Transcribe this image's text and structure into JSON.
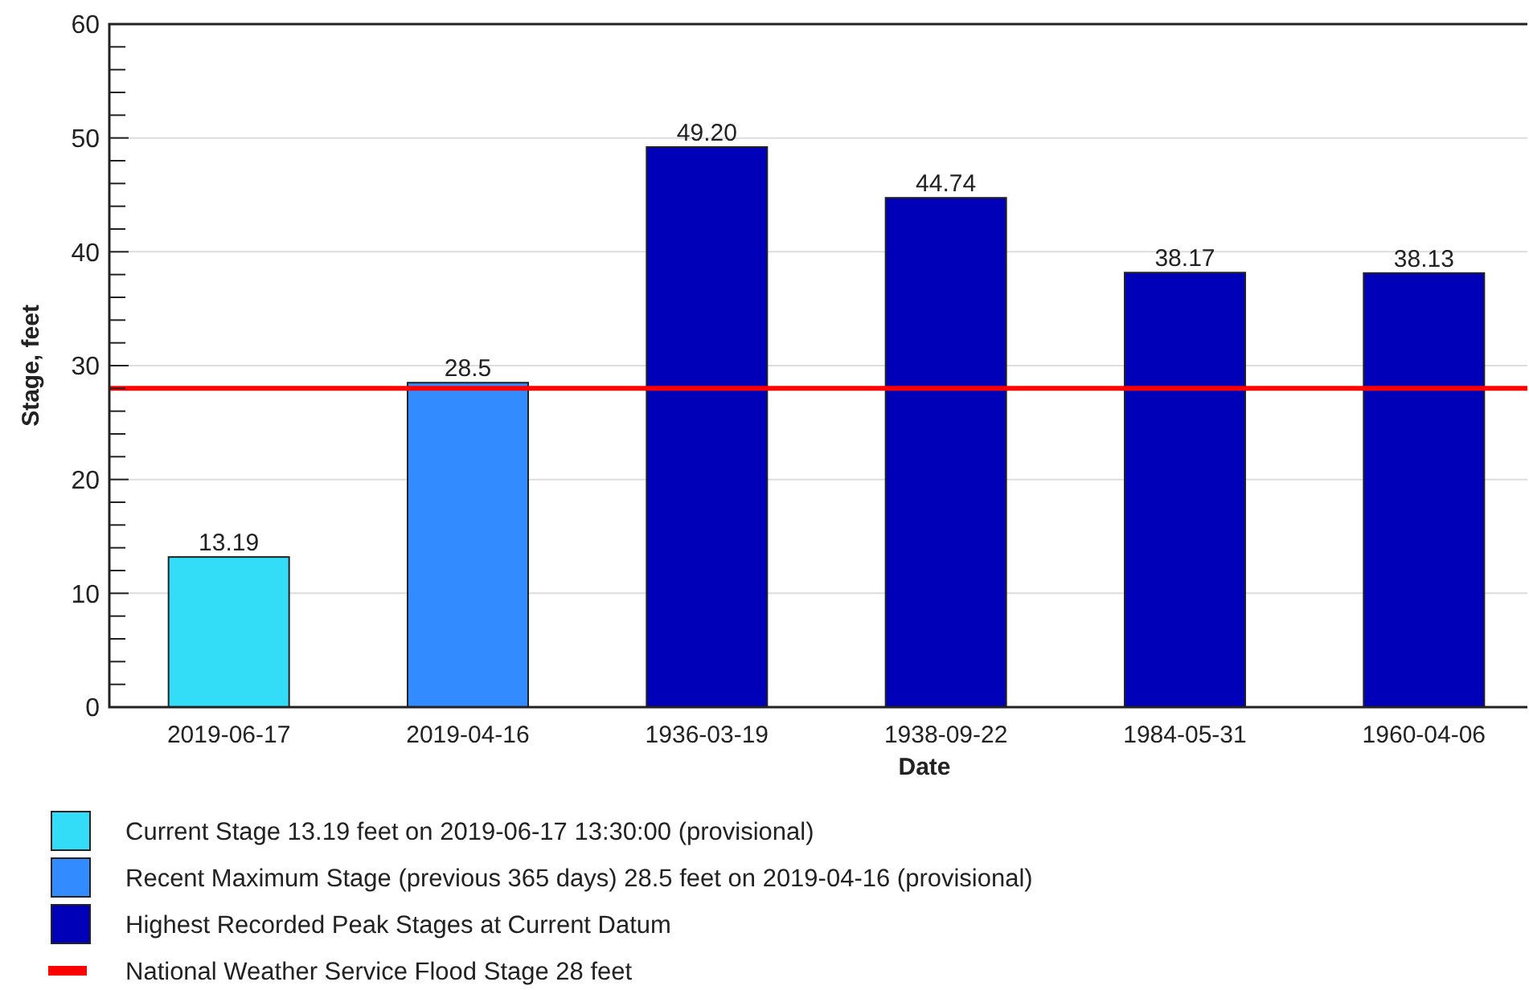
{
  "chart_data": {
    "type": "bar",
    "xlabel": "Date",
    "ylabel": "Stage, feet",
    "categories": [
      "2019-06-17",
      "2019-04-16",
      "1936-03-19",
      "1938-09-22",
      "1984-05-31",
      "1960-04-06"
    ],
    "series": [
      {
        "name": "Current Stage 13.19 feet on 2019-06-17 13:30:00 (provisional)",
        "color": "#33ddf8",
        "values": [
          13.19,
          null,
          null,
          null,
          null,
          null
        ],
        "value_labels": [
          "13.19",
          null,
          null,
          null,
          null,
          null
        ]
      },
      {
        "name": "Recent Maximum Stage (previous 365 days) 28.5 feet on 2019-04-16 (provisional)",
        "color": "#338cff",
        "values": [
          null,
          28.5,
          null,
          null,
          null,
          null
        ],
        "value_labels": [
          null,
          "28.5",
          null,
          null,
          null,
          null
        ]
      },
      {
        "name": "Highest Recorded Peak Stages at Current Datum",
        "color": "#0000b8",
        "values": [
          null,
          null,
          49.2,
          44.74,
          38.17,
          38.13
        ],
        "value_labels": [
          null,
          null,
          "49.20",
          "44.74",
          "38.17",
          "38.13"
        ]
      }
    ],
    "ylim": [
      0,
      60
    ],
    "yticks": [
      0,
      {
        "value": 2,
        "label": null
      },
      {
        "value": 4,
        "label": null
      },
      {
        "value": 6,
        "label": null
      },
      {
        "value": 8,
        "label": null
      },
      10,
      {
        "value": 12,
        "label": null
      },
      {
        "value": 14,
        "label": null
      },
      {
        "value": 16,
        "label": null
      },
      {
        "value": 18,
        "label": null
      },
      20,
      {
        "value": 22,
        "label": null
      },
      {
        "value": 24,
        "label": null
      },
      {
        "value": 26,
        "label": null
      },
      {
        "value": 28,
        "label": null
      },
      30,
      {
        "value": 32,
        "label": null
      },
      {
        "value": 34,
        "label": null
      },
      {
        "value": 36,
        "label": null
      },
      {
        "value": 38,
        "label": null
      },
      40,
      {
        "value": 42,
        "label": null
      },
      {
        "value": 44,
        "label": null
      },
      {
        "value": 46,
        "label": null
      },
      {
        "value": 48,
        "label": null
      },
      50,
      {
        "value": 52,
        "label": null
      },
      {
        "value": 54,
        "label": null
      },
      {
        "value": 56,
        "label": null
      },
      {
        "value": 58,
        "label": null
      },
      60
    ],
    "grid": "y",
    "ref_lines": [
      {
        "axis": "y",
        "value": 28,
        "label": "National Weather Service Flood Stage 28 feet",
        "color": "#ff0000"
      }
    ],
    "legend": "bottom"
  }
}
